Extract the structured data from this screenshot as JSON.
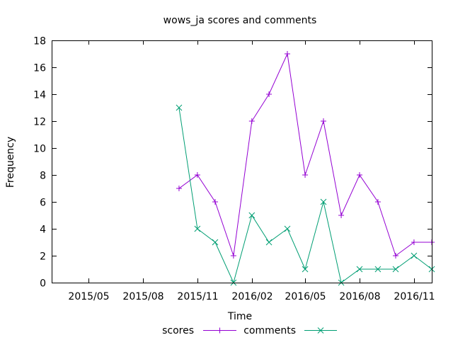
{
  "chart_data": {
    "type": "line",
    "title": "wows_ja scores and comments",
    "xlabel": "Time",
    "ylabel": "Frequency",
    "xlim": [
      "2015-03-01",
      "2016-12-01"
    ],
    "ylim": [
      0,
      18
    ],
    "yticks": [
      0,
      2,
      4,
      6,
      8,
      10,
      12,
      14,
      16,
      18
    ],
    "xticks": [
      {
        "date": "2015-05-01",
        "label": "2015/05"
      },
      {
        "date": "2015-08-01",
        "label": "2015/08"
      },
      {
        "date": "2015-11-01",
        "label": "2015/11"
      },
      {
        "date": "2016-02-01",
        "label": "2016/02"
      },
      {
        "date": "2016-05-01",
        "label": "2016/05"
      },
      {
        "date": "2016-08-01",
        "label": "2016/08"
      },
      {
        "date": "2016-11-01",
        "label": "2016/11"
      }
    ],
    "grid": false,
    "legend_position": "bottom-center",
    "x": [
      "2015-10-01",
      "2015-11-01",
      "2015-12-01",
      "2016-01-01",
      "2016-02-01",
      "2016-03-01",
      "2016-04-01",
      "2016-05-01",
      "2016-06-01",
      "2016-07-01",
      "2016-08-01",
      "2016-09-01",
      "2016-10-01",
      "2016-11-01",
      "2016-12-01"
    ],
    "series": [
      {
        "name": "scores",
        "color": "#9400d3",
        "marker": "+",
        "values": [
          7,
          8,
          6,
          2,
          12,
          14,
          17,
          8,
          12,
          5,
          8,
          6,
          2,
          3,
          3
        ]
      },
      {
        "name": "comments",
        "color": "#009e73",
        "marker": "x",
        "values": [
          13,
          4,
          3,
          0,
          5,
          3,
          4,
          1,
          6,
          0,
          1,
          1,
          1,
          2,
          1
        ]
      }
    ]
  }
}
